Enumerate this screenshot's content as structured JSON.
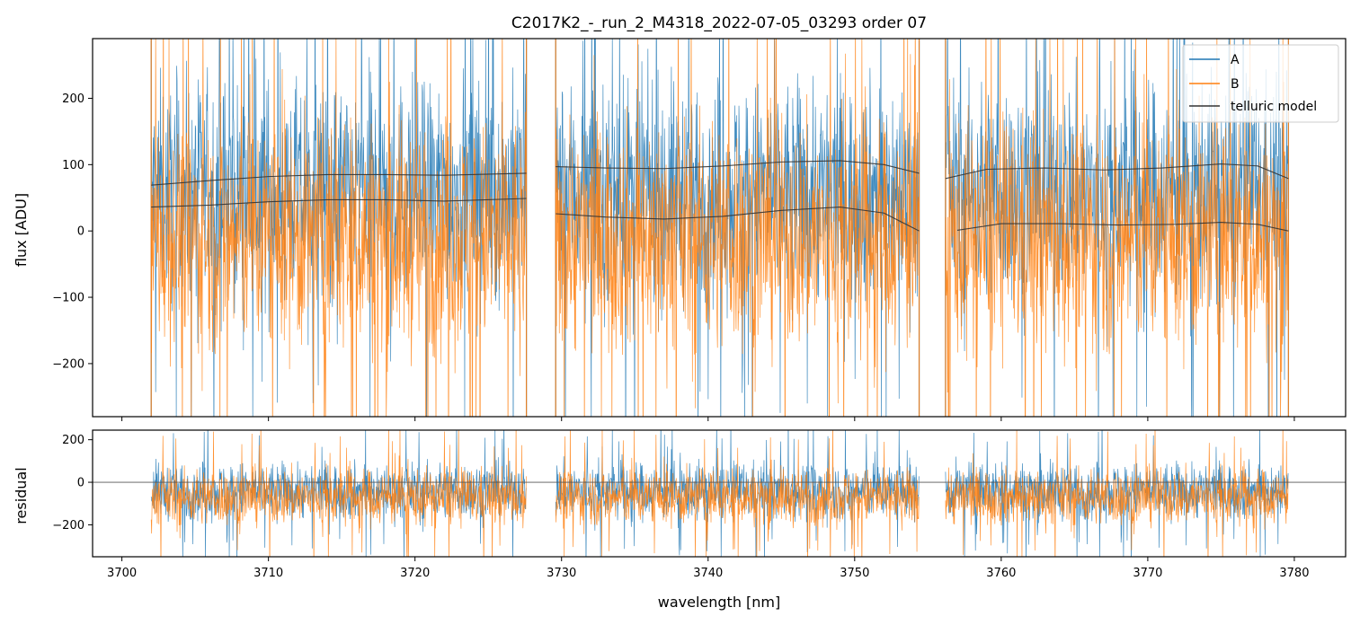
{
  "chart_data": {
    "type": "line",
    "title": "C2017K2_-_run_2_M4318_2022-07-05_03293  order 07",
    "xlabel": "wavelength [nm]",
    "x_ticks": [
      3700,
      3710,
      3720,
      3730,
      3740,
      3750,
      3760,
      3770,
      3780
    ],
    "xlim": [
      3698,
      3783.5
    ],
    "colors": {
      "A": "#1f77b4",
      "B": "#ff7f0e",
      "telluric": "#333333"
    },
    "legend": {
      "placement": "top-right",
      "entries": [
        "A",
        "B",
        "telluric model"
      ]
    },
    "segments": [
      [
        3702.0,
        3727.6
      ],
      [
        3729.6,
        3754.4
      ],
      [
        3756.2,
        3779.6
      ]
    ],
    "top_panel": {
      "ylabel": "flux [ADU]",
      "ylim": [
        -280,
        290
      ],
      "y_ticks": [
        -200,
        -100,
        0,
        100,
        200
      ],
      "series": [
        {
          "name": "A",
          "level": 60,
          "spread": 150
        },
        {
          "name": "B",
          "level": -10,
          "spread": 160
        }
      ],
      "telluric_model": [
        {
          "x": [
            3702,
            3706,
            3710,
            3714,
            3718,
            3722,
            3727.6
          ],
          "y": [
            69,
            76,
            82,
            85,
            85,
            84,
            87
          ]
        },
        {
          "x": [
            3702,
            3706,
            3710,
            3714,
            3718,
            3722,
            3727.6
          ],
          "y": [
            36,
            39,
            44,
            47,
            47,
            45,
            49
          ]
        },
        {
          "x": [
            3729.6,
            3733,
            3737,
            3741,
            3745,
            3749,
            3752,
            3754.4
          ],
          "y": [
            97,
            95,
            94,
            98,
            104,
            106,
            100,
            87
          ]
        },
        {
          "x": [
            3729.6,
            3733,
            3737,
            3741,
            3745,
            3749,
            3752,
            3754.4
          ],
          "y": [
            26,
            21,
            18,
            22,
            31,
            36,
            27,
            0
          ]
        },
        {
          "x": [
            3756.2,
            3759,
            3763,
            3767,
            3771,
            3775,
            3777.5,
            3779.6
          ],
          "y": [
            79,
            93,
            95,
            92,
            95,
            101,
            98,
            79
          ]
        },
        {
          "x": [
            3757,
            3760,
            3764,
            3768,
            3772,
            3775,
            3777.5,
            3779.6
          ],
          "y": [
            1,
            11,
            11,
            9,
            10,
            13,
            10,
            0
          ]
        }
      ]
    },
    "bottom_panel": {
      "ylabel": "residual",
      "ylim": [
        -350,
        245
      ],
      "y_ticks": [
        -200,
        0,
        200
      ],
      "reference_line": 0,
      "series": [
        {
          "name": "A",
          "level": -40,
          "spread": 120
        },
        {
          "name": "B",
          "level": -70,
          "spread": 120
        }
      ]
    }
  }
}
